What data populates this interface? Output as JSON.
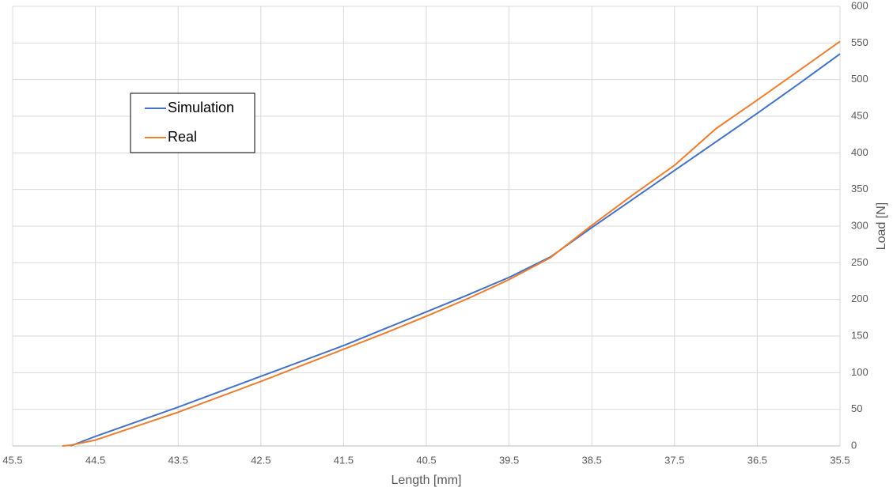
{
  "chart_data": {
    "type": "line",
    "x_label": "Length [mm]",
    "y_label": "Load [N]",
    "x": [
      44.9,
      44.8,
      44.5,
      44.0,
      43.5,
      43.0,
      42.5,
      42.0,
      41.5,
      41.0,
      40.5,
      40.0,
      39.5,
      39.0,
      38.5,
      38.0,
      37.5,
      37.0,
      36.5,
      36.0,
      35.5
    ],
    "series": [
      {
        "name": "Simulation",
        "color": "#4472c4",
        "values": [
          null,
          0,
          13,
          33,
          53,
          74,
          95,
          116,
          137,
          160,
          183,
          206,
          230,
          258,
          298,
          337,
          376,
          415,
          454,
          494,
          535
        ]
      },
      {
        "name": "Real",
        "color": "#ed7d31",
        "values": [
          0,
          1,
          8,
          27,
          46,
          67,
          88,
          110,
          132,
          154,
          177,
          201,
          227,
          257,
          301,
          343,
          383,
          433,
          472,
          512,
          552
        ]
      }
    ],
    "xlim": [
      45.5,
      35.5
    ],
    "xticks": [
      45.5,
      44.5,
      43.5,
      42.5,
      41.5,
      40.5,
      39.5,
      38.5,
      37.5,
      36.5,
      35.5
    ],
    "ylim": [
      0,
      600
    ],
    "yticks": [
      0,
      50,
      100,
      150,
      200,
      250,
      300,
      350,
      400,
      450,
      500,
      550,
      600
    ],
    "grid": true,
    "legend": "upper left"
  }
}
